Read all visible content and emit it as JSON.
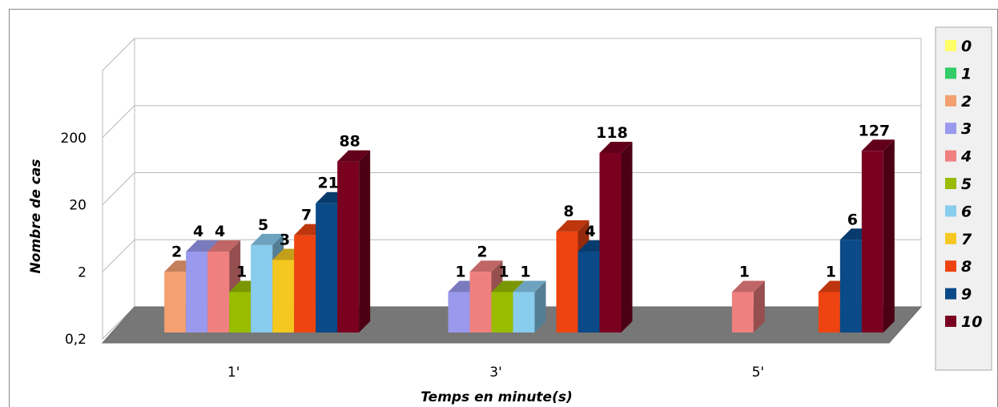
{
  "chart_data": {
    "type": "bar",
    "title": "",
    "xlabel": "Temps en minute(s)",
    "ylabel": "Nombre de cas",
    "y_scale": "log",
    "ylim": [
      0.2,
      2000
    ],
    "y_ticks": [
      "0,2",
      "2",
      "20",
      "200"
    ],
    "y_tick_values": [
      0.2,
      2,
      20,
      200
    ],
    "categories": [
      "1'",
      "3'",
      "5'"
    ],
    "legend_position": "right",
    "grid": true,
    "series": [
      {
        "name": "0",
        "color": "#ffff66",
        "values": [
          null,
          null,
          null
        ]
      },
      {
        "name": "1",
        "color": "#33cc66",
        "values": [
          null,
          null,
          null
        ]
      },
      {
        "name": "2",
        "color": "#f4a070",
        "values": [
          2,
          null,
          null
        ]
      },
      {
        "name": "3",
        "color": "#9999ee",
        "values": [
          4,
          1,
          null
        ]
      },
      {
        "name": "4",
        "color": "#f08080",
        "values": [
          4,
          2,
          1
        ]
      },
      {
        "name": "5",
        "color": "#99bb00",
        "values": [
          1,
          1,
          null
        ]
      },
      {
        "name": "6",
        "color": "#88ccee",
        "values": [
          5,
          1,
          null
        ]
      },
      {
        "name": "7",
        "color": "#f4c820",
        "values": [
          3,
          null,
          null
        ]
      },
      {
        "name": "8",
        "color": "#ee4411",
        "values": [
          7,
          8,
          1
        ]
      },
      {
        "name": "9",
        "color": "#0a4a88",
        "values": [
          21,
          4,
          6
        ]
      },
      {
        "name": "10",
        "color": "#7a0020",
        "values": [
          88,
          118,
          127
        ]
      }
    ]
  }
}
